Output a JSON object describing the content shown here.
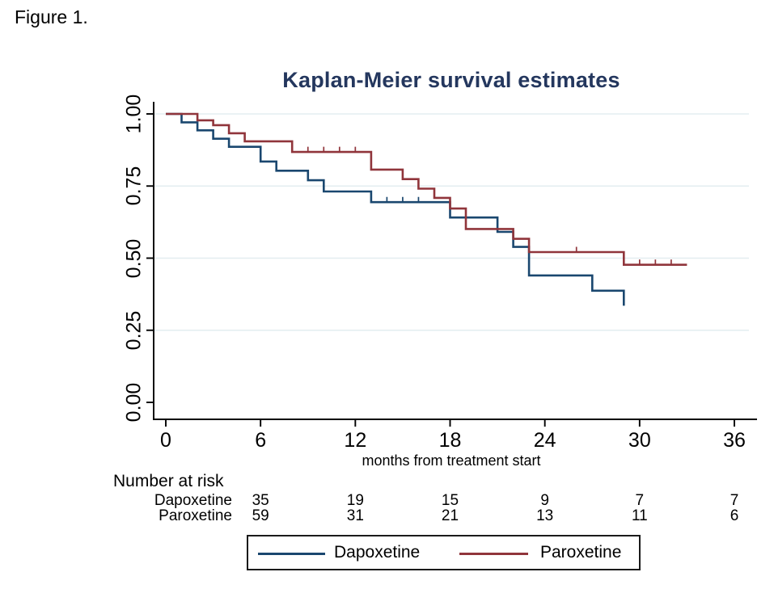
{
  "figure_label": "Figure 1.",
  "colors": {
    "title": "#24375e",
    "axis": "#000000",
    "grid": "#e3edf0",
    "dapoxetine": "#1a476f",
    "paroxetine": "#90353b"
  },
  "chart_data": {
    "type": "line",
    "subtype": "kaplan-meier-step",
    "title": "Kaplan-Meier survival estimates",
    "xlabel": "months from treatment start",
    "ylabel": "",
    "xlim": [
      0,
      36
    ],
    "ylim": [
      0.0,
      1.0
    ],
    "x_ticks": [
      0,
      6,
      12,
      18,
      24,
      30,
      36
    ],
    "y_ticks": [
      {
        "label": "1.00",
        "value": 1.0
      },
      {
        "label": "0.75",
        "value": 0.75
      },
      {
        "label": "0.50",
        "value": 0.5
      },
      {
        "label": "0.25",
        "value": 0.25
      },
      {
        "label": "0.00",
        "value": 0.0
      }
    ],
    "grid": "horizontal-gridlines-on",
    "legend": {
      "position": "bottom-center-boxed",
      "entries": [
        "Dapoxetine",
        "Paroxetine"
      ]
    },
    "series": [
      {
        "name": "Dapoxetine",
        "color": "#1a476f",
        "points": [
          [
            0,
            1.0
          ],
          [
            1,
            0.971
          ],
          [
            2,
            0.943
          ],
          [
            3,
            0.914
          ],
          [
            4,
            0.886
          ],
          [
            6,
            0.835
          ],
          [
            7,
            0.803
          ],
          [
            9,
            0.77
          ],
          [
            10,
            0.731
          ],
          [
            13,
            0.694
          ],
          [
            18,
            0.641
          ],
          [
            21,
            0.591
          ],
          [
            22,
            0.539
          ],
          [
            23,
            0.44
          ],
          [
            27,
            0.387
          ],
          [
            29,
            0.335
          ]
        ],
        "end_time": 29,
        "censor_times": [
          14,
          15,
          16
        ]
      },
      {
        "name": "Paroxetine",
        "color": "#90353b",
        "points": [
          [
            0,
            1.0
          ],
          [
            2,
            0.978
          ],
          [
            3,
            0.961
          ],
          [
            4,
            0.933
          ],
          [
            5,
            0.905
          ],
          [
            8,
            0.868
          ],
          [
            13,
            0.807
          ],
          [
            15,
            0.774
          ],
          [
            16,
            0.741
          ],
          [
            17,
            0.709
          ],
          [
            18,
            0.672
          ],
          [
            19,
            0.601
          ],
          [
            22,
            0.567
          ],
          [
            23,
            0.521
          ],
          [
            29,
            0.477
          ]
        ],
        "end_time": 33,
        "censor_times": [
          9,
          10,
          11,
          12,
          26,
          30,
          31,
          32
        ]
      }
    ],
    "risk_table": {
      "title": "Number at risk",
      "time_points": [
        6,
        12,
        18,
        24,
        30,
        36
      ],
      "rows": [
        {
          "label": "Dapoxetine",
          "counts": [
            35,
            19,
            15,
            9,
            7,
            7
          ]
        },
        {
          "label": "Paroxetine",
          "counts": [
            59,
            31,
            21,
            13,
            11,
            6
          ]
        }
      ]
    }
  }
}
